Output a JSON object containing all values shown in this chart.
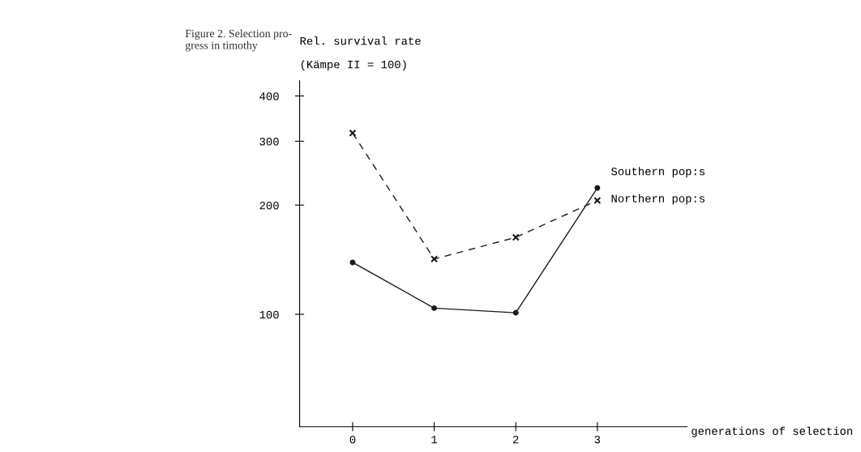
{
  "chart_data": {
    "type": "line",
    "title": "Figure 2. Selection pro-\ngress in timothy",
    "ylabel": "Rel. survival rate\n(Kämpe II = 100)",
    "xlabel": "generations of selection",
    "categories": [
      "0",
      "1",
      "2",
      "3"
    ],
    "series": [
      {
        "name": "Southern pop:s",
        "color": "#1a1a1a",
        "values": [
          139,
          104,
          101,
          223
        ],
        "marker": "circle",
        "line_style": "solid"
      },
      {
        "name": "Northern pop:s",
        "color": "#1a1a1a",
        "values": [
          316,
          142,
          163,
          206
        ],
        "marker": "cross",
        "line_style": "dashed"
      }
    ],
    "log": true,
    "ylim": [
      49,
      440
    ],
    "yticks": [
      100,
      200,
      300,
      400
    ],
    "grid": false,
    "legend": false
  }
}
